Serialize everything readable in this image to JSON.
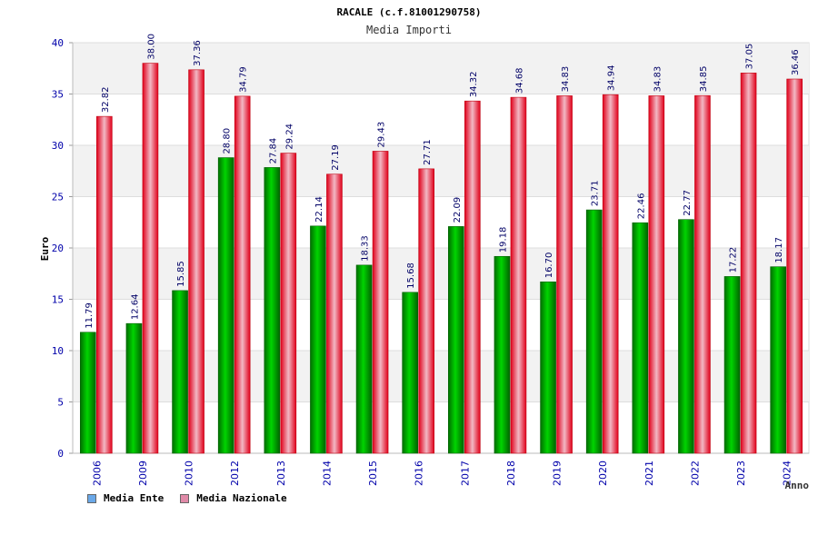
{
  "chart_data": {
    "type": "bar",
    "title": "RACALE (c.f.81001290758)",
    "subtitle": "Media Importi",
    "xlabel": "Anno",
    "ylabel": "Euro",
    "ylim": [
      0,
      40
    ],
    "yticks": [
      0,
      5,
      10,
      15,
      20,
      25,
      30,
      35,
      40
    ],
    "grid": true,
    "legend_position": "bottom-left",
    "categories": [
      "2006",
      "2009",
      "2010",
      "2012",
      "2013",
      "2014",
      "2015",
      "2016",
      "2017",
      "2018",
      "2019",
      "2020",
      "2021",
      "2022",
      "2023",
      "2024"
    ],
    "series": [
      {
        "name": "Media Ente",
        "color": "#00a000",
        "values": [
          11.79,
          12.64,
          15.85,
          28.8,
          27.84,
          22.14,
          18.33,
          15.68,
          22.09,
          19.18,
          16.7,
          23.71,
          22.46,
          22.77,
          17.22,
          18.17
        ],
        "labels": [
          "11.79",
          "12.64",
          "15.85",
          "28.80",
          "27.84",
          "22.14",
          "18.33",
          "15.68",
          "22.09",
          "19.18",
          "16.70",
          "23.71",
          "22.46",
          "22.77",
          "17.22",
          "18.17"
        ]
      },
      {
        "name": "Media Nazionale",
        "color": "#e8101a",
        "values": [
          32.82,
          38.0,
          37.36,
          34.79,
          29.24,
          27.19,
          29.43,
          27.71,
          34.32,
          34.68,
          34.83,
          34.94,
          34.83,
          34.85,
          37.05,
          36.46
        ],
        "labels": [
          "32.82",
          "38.00",
          "37.36",
          "34.79",
          "29.24",
          "27.19",
          "29.43",
          "27.71",
          "34.32",
          "34.68",
          "34.83",
          "34.94",
          "34.83",
          "34.85",
          "37.05",
          "36.46"
        ]
      }
    ]
  },
  "legend": {
    "ente_label": "Media Ente",
    "ente_color": "#6aa8e8",
    "nazionale_label": "Media Nazionale",
    "nazionale_color": "#e08aa8"
  }
}
